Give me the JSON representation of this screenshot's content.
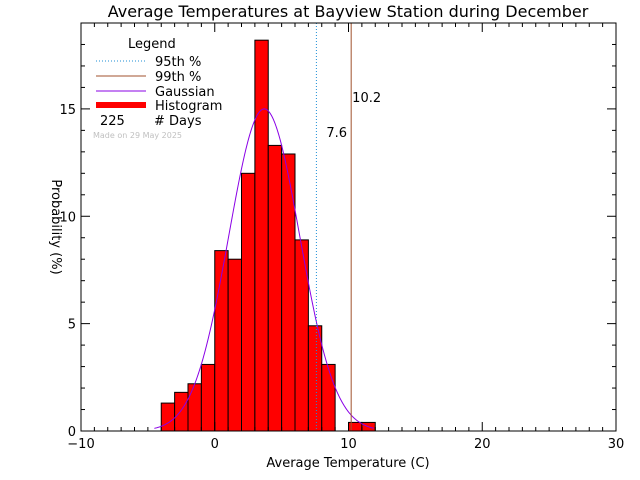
{
  "chart_data": {
    "type": "bar",
    "title": "Average Temperatures at Bayview Station during December",
    "xlabel": "Average Temperature (C)",
    "ylabel": "Probability (%)",
    "xlim": [
      -10,
      30
    ],
    "ylim": [
      0,
      19
    ],
    "x_ticks": [
      -10,
      0,
      10,
      20,
      30
    ],
    "x_tick_labels": [
      "−10",
      "0",
      "10",
      "20",
      "30"
    ],
    "y_ticks": [
      0,
      5,
      10,
      15
    ],
    "y_tick_labels": [
      "0",
      "5",
      "10",
      "15"
    ],
    "bin_width": 1,
    "bins": [
      {
        "x0": -4,
        "x1": -3,
        "value": 1.3
      },
      {
        "x0": -3,
        "x1": -2,
        "value": 1.8
      },
      {
        "x0": -2,
        "x1": -1,
        "value": 2.2
      },
      {
        "x0": -1,
        "x1": 0,
        "value": 3.1
      },
      {
        "x0": 0,
        "x1": 1,
        "value": 8.4
      },
      {
        "x0": 1,
        "x1": 2,
        "value": 8.0
      },
      {
        "x0": 2,
        "x1": 3,
        "value": 12.0
      },
      {
        "x0": 3,
        "x1": 4,
        "value": 18.2
      },
      {
        "x0": 4,
        "x1": 5,
        "value": 13.3
      },
      {
        "x0": 5,
        "x1": 6,
        "value": 12.9
      },
      {
        "x0": 6,
        "x1": 7,
        "value": 8.9
      },
      {
        "x0": 7,
        "x1": 8,
        "value": 4.9
      },
      {
        "x0": 8,
        "x1": 9,
        "value": 3.1
      },
      {
        "x0": 10,
        "x1": 11,
        "value": 0.4
      },
      {
        "x0": 11,
        "x1": 12,
        "value": 0.4
      }
    ],
    "gaussian": {
      "mean": 3.7,
      "sigma": 2.65,
      "peak": 15.0
    },
    "percentiles": [
      {
        "name": "95th %",
        "value": 7.6,
        "label": "7.6",
        "color": "#1f8fd6",
        "style": "dotted"
      },
      {
        "name": "99th %",
        "value": 10.2,
        "label": "10.2",
        "color": "#a0522d",
        "style": "solid"
      }
    ],
    "legend": {
      "title": "Legend",
      "placement": "top-left",
      "items": [
        {
          "label": "95th %",
          "kind": "dotted-line",
          "color": "#1f8fd6"
        },
        {
          "label": "99th %",
          "kind": "solid-line",
          "color": "#a0522d"
        },
        {
          "label": "Gaussian",
          "kind": "solid-line",
          "color": "#8a00e6"
        },
        {
          "label": "Histogram",
          "kind": "thick-line",
          "color": "#ff0000"
        }
      ],
      "days_count": "225",
      "days_label": "# Days"
    },
    "made_on": "Made on 29 May 2025",
    "colors": {
      "histogram": "#ff0000",
      "gaussian": "#8a00e6",
      "p95": "#1f8fd6",
      "p99": "#a0522d"
    }
  }
}
